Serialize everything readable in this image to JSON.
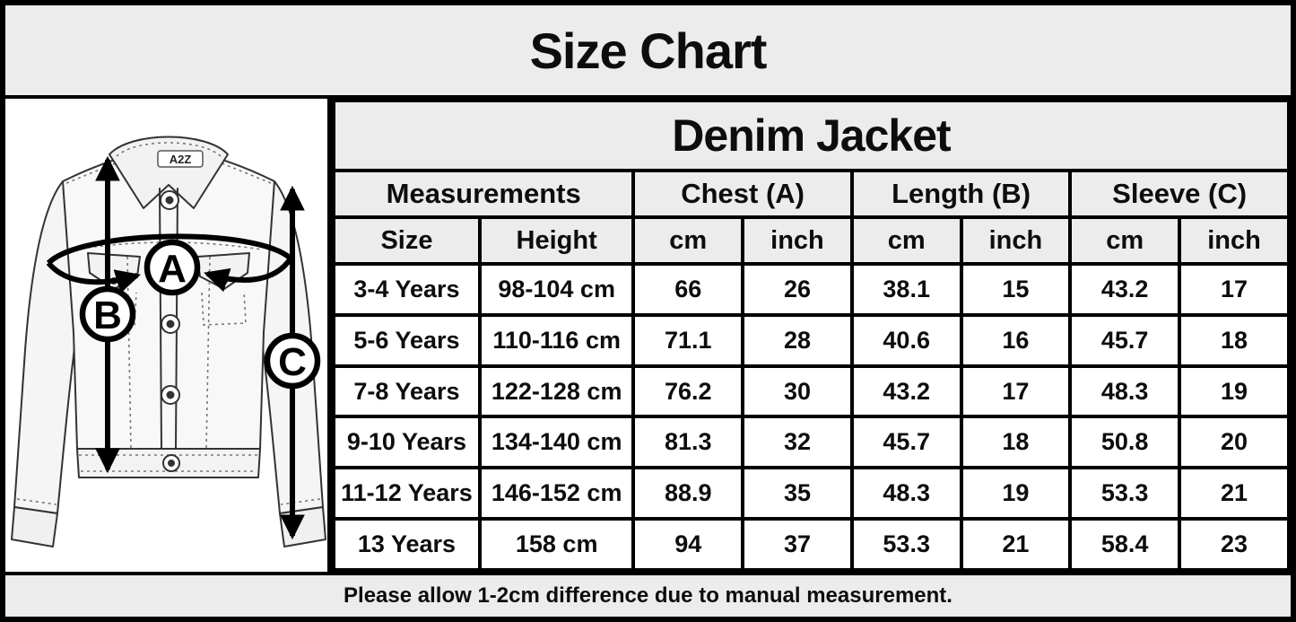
{
  "title": "Size Chart",
  "product": "Denim Jacket",
  "footer_note": "Please allow 1-2cm difference due to manual measurement.",
  "colors": {
    "header_bg": "#ececec",
    "cell_bg": "#ffffff",
    "border": "#000000",
    "text": "#0d0d0d"
  },
  "diagram": {
    "brand_tag": "A2Z",
    "markers": [
      {
        "letter": "A",
        "measure": "Chest"
      },
      {
        "letter": "B",
        "measure": "Length"
      },
      {
        "letter": "C",
        "measure": "Sleeve"
      }
    ]
  },
  "table": {
    "group_headers": [
      {
        "label": "Measurements",
        "span": 2
      },
      {
        "label": "Chest (A)",
        "span": 2
      },
      {
        "label": "Length (B)",
        "span": 2
      },
      {
        "label": "Sleeve (C)",
        "span": 2
      }
    ],
    "column_headers": [
      "Size",
      "Height",
      "cm",
      "inch",
      "cm",
      "inch",
      "cm",
      "inch"
    ],
    "rows": [
      [
        "3-4 Years",
        "98-104 cm",
        "66",
        "26",
        "38.1",
        "15",
        "43.2",
        "17"
      ],
      [
        "5-6 Years",
        "110-116 cm",
        "71.1",
        "28",
        "40.6",
        "16",
        "45.7",
        "18"
      ],
      [
        "7-8 Years",
        "122-128 cm",
        "76.2",
        "30",
        "43.2",
        "17",
        "48.3",
        "19"
      ],
      [
        "9-10 Years",
        "134-140 cm",
        "81.3",
        "32",
        "45.7",
        "18",
        "50.8",
        "20"
      ],
      [
        "11-12 Years",
        "146-152 cm",
        "88.9",
        "35",
        "48.3",
        "19",
        "53.3",
        "21"
      ],
      [
        "13 Years",
        "158 cm",
        "94",
        "37",
        "53.3",
        "21",
        "58.4",
        "23"
      ]
    ]
  },
  "chart_data": {
    "type": "table",
    "title": "Size Chart",
    "subtitle": "Denim Jacket",
    "columns": [
      "Size",
      "Height",
      "Chest (A) cm",
      "Chest (A) inch",
      "Length (B) cm",
      "Length (B) inch",
      "Sleeve (C) cm",
      "Sleeve (C) inch"
    ],
    "rows": [
      [
        "3-4 Years",
        "98-104 cm",
        66,
        26,
        38.1,
        15,
        43.2,
        17
      ],
      [
        "5-6 Years",
        "110-116 cm",
        71.1,
        28,
        40.6,
        16,
        45.7,
        18
      ],
      [
        "7-8 Years",
        "122-128 cm",
        76.2,
        30,
        43.2,
        17,
        48.3,
        19
      ],
      [
        "9-10 Years",
        "134-140 cm",
        81.3,
        32,
        45.7,
        18,
        50.8,
        20
      ],
      [
        "11-12 Years",
        "146-152 cm",
        88.9,
        35,
        48.3,
        19,
        53.3,
        21
      ],
      [
        "13 Years",
        "158 cm",
        94,
        37,
        53.3,
        21,
        58.4,
        23
      ]
    ],
    "note": "Please allow 1-2cm difference due to manual measurement."
  }
}
